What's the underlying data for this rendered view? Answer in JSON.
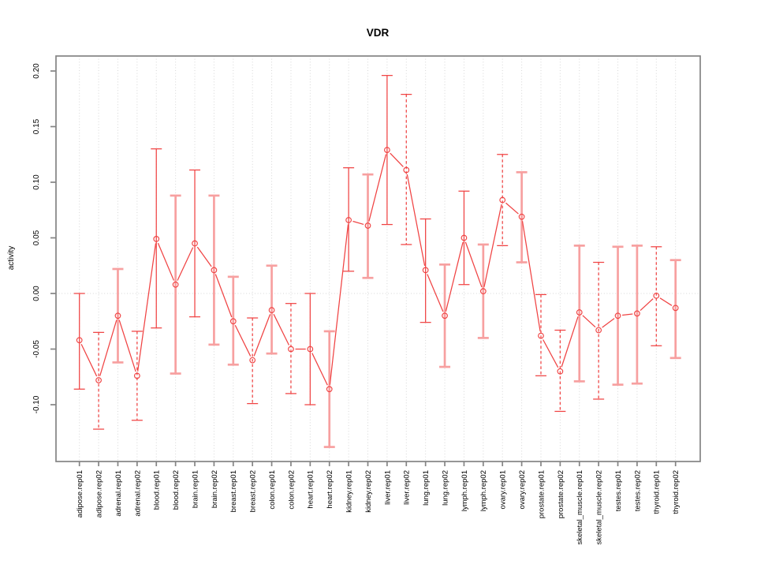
{
  "title": "VDR",
  "y_axis": {
    "label": "activity"
  },
  "chart_data": {
    "type": "line",
    "subtype": "points-with-error-bars",
    "title": "VDR",
    "xlabel": "",
    "ylabel": "activity",
    "ylim": [
      -0.152,
      0.213
    ],
    "ytick_values": [
      0.2,
      0.15,
      0.1,
      0.05,
      0.0,
      -0.05,
      -0.1
    ],
    "ytick_labels": [
      "0.20",
      "0.15",
      "0.10",
      "0.05",
      "0.00",
      "-0.05",
      "-0.10"
    ],
    "grid": "dotted vertical gridline at every category; dotted horizontal line at y=0",
    "legend_position": "none",
    "point_marker": "open-circle",
    "categories": [
      "adipose.rep01",
      "adipose.rep02",
      "adrenal.rep01",
      "adrenal.rep02",
      "blood.rep01",
      "blood.rep02",
      "brain.rep01",
      "brain.rep02",
      "breast.rep01",
      "breast.rep02",
      "colon.rep01",
      "colon.rep02",
      "heart.rep01",
      "heart.rep02",
      "kidney.rep01",
      "kidney.rep02",
      "liver.rep01",
      "liver.rep02",
      "lung.rep01",
      "lung.rep02",
      "lymph.rep01",
      "lymph.rep02",
      "ovary.rep01",
      "ovary.rep02",
      "prostate.rep01",
      "prostate.rep02",
      "skeletal_muscle.rep01",
      "skeletal_muscle.rep02",
      "testes.rep01",
      "testes.rep02",
      "thyroid.rep01",
      "thyroid.rep02"
    ],
    "series": [
      {
        "name": "activity",
        "values": [
          -0.042,
          -0.078,
          -0.02,
          -0.074,
          0.049,
          0.008,
          0.045,
          0.021,
          -0.025,
          -0.06,
          -0.015,
          -0.05,
          -0.05,
          -0.086,
          0.066,
          0.061,
          0.129,
          0.111,
          0.021,
          -0.02,
          0.05,
          0.002,
          0.084,
          0.069,
          -0.038,
          -0.07,
          -0.017,
          -0.033,
          -0.02,
          -0.018,
          -0.002,
          -0.013
        ],
        "error_high": [
          0.0,
          -0.035,
          0.022,
          -0.034,
          0.13,
          0.088,
          0.111,
          0.088,
          0.015,
          -0.022,
          0.025,
          -0.009,
          0.0,
          -0.034,
          0.113,
          0.107,
          0.196,
          0.179,
          0.067,
          0.026,
          0.092,
          0.044,
          0.125,
          0.109,
          -0.001,
          -0.033,
          0.043,
          0.028,
          0.042,
          0.043,
          0.042,
          0.03
        ],
        "error_low": [
          -0.086,
          -0.122,
          -0.062,
          -0.114,
          -0.031,
          -0.072,
          -0.021,
          -0.046,
          -0.064,
          -0.099,
          -0.054,
          -0.09,
          -0.1,
          -0.138,
          0.02,
          0.014,
          0.062,
          0.044,
          -0.026,
          -0.066,
          0.008,
          -0.04,
          0.043,
          0.028,
          -0.074,
          -0.106,
          -0.079,
          -0.095,
          -0.082,
          -0.081,
          -0.047,
          -0.058
        ],
        "error_bar_styles": [
          "solid",
          "dashed",
          "thick",
          "dashed",
          "solid",
          "thick",
          "solid",
          "thick",
          "thick",
          "dashed",
          "thick",
          "dashed",
          "solid",
          "thick",
          "solid",
          "thick",
          "solid",
          "dashed",
          "solid",
          "thick",
          "solid",
          "thick",
          "dashed",
          "thick",
          "dashed",
          "dashed",
          "thick",
          "dashed",
          "thick",
          "thick",
          "dashed",
          "thick"
        ]
      }
    ],
    "colors": {
      "line_red": "#f04343",
      "error_bar_pink": "#f7a0a0",
      "gridline_gray": "#d6d6d6",
      "frame_gray": "#848484",
      "text_black": "#000000"
    }
  }
}
